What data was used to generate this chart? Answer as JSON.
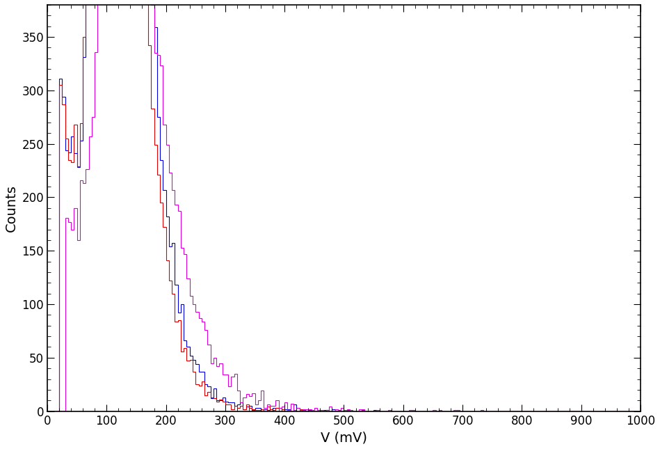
{
  "xlabel": "V (mV)",
  "ylabel": "Counts",
  "xlim": [
    0,
    1000
  ],
  "ylim": [
    0,
    380
  ],
  "colors": [
    "#0000dd",
    "#dd0000",
    "#dd00dd"
  ],
  "bin_width": 5,
  "background_color": "#ffffff",
  "yticks": [
    0,
    50,
    100,
    150,
    200,
    250,
    300,
    350
  ],
  "xticks": [
    0,
    100,
    200,
    300,
    400,
    500,
    600,
    700,
    800,
    900,
    1000
  ]
}
